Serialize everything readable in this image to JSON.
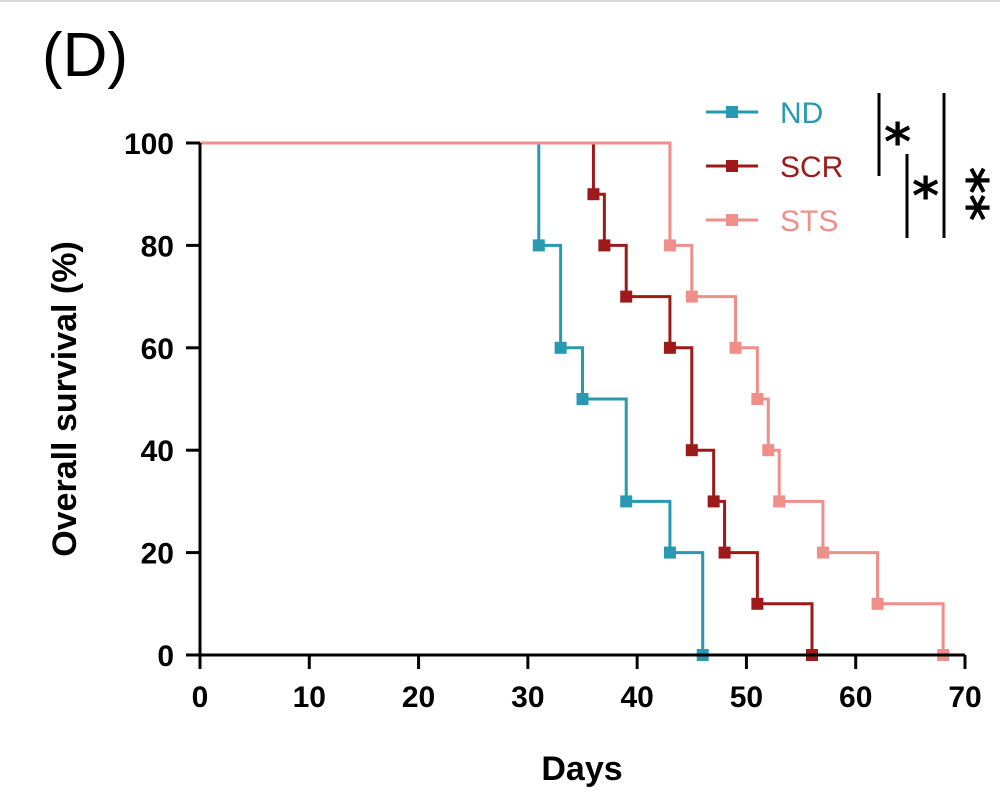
{
  "panel_label": "(D)",
  "chart_data": {
    "type": "line",
    "step": true,
    "xlabel": "Days",
    "ylabel": "Overall survival (%)",
    "xlim": [
      0,
      70
    ],
    "ylim": [
      0,
      100
    ],
    "xticks": [
      "0",
      "10",
      "20",
      "30",
      "40",
      "50",
      "60",
      "70"
    ],
    "yticks": [
      "0",
      "20",
      "40",
      "60",
      "80",
      "100"
    ],
    "grid": false,
    "legend_position": "top-right",
    "series": [
      {
        "name": "ND",
        "color": "#2899b0",
        "x": [
          0,
          31,
          33,
          35,
          39,
          43,
          46
        ],
        "y": [
          100,
          80,
          60,
          50,
          30,
          20,
          0
        ]
      },
      {
        "name": "SCR",
        "color": "#9e1a1a",
        "x": [
          0,
          36,
          37,
          39,
          43,
          45,
          47,
          48,
          51,
          56
        ],
        "y": [
          100,
          90,
          80,
          70,
          60,
          40,
          30,
          20,
          10,
          0
        ]
      },
      {
        "name": "STS",
        "color": "#ef8f8a",
        "x": [
          0,
          43,
          45,
          49,
          51,
          52,
          53,
          57,
          62,
          68
        ],
        "y": [
          100,
          80,
          70,
          60,
          50,
          40,
          30,
          20,
          10,
          0
        ]
      }
    ],
    "significance": [
      {
        "label": "*",
        "pair": "ND vs SCR"
      },
      {
        "label": "*",
        "pair": "SCR vs STS"
      },
      {
        "label": "**",
        "pair": "ND vs STS"
      }
    ]
  }
}
